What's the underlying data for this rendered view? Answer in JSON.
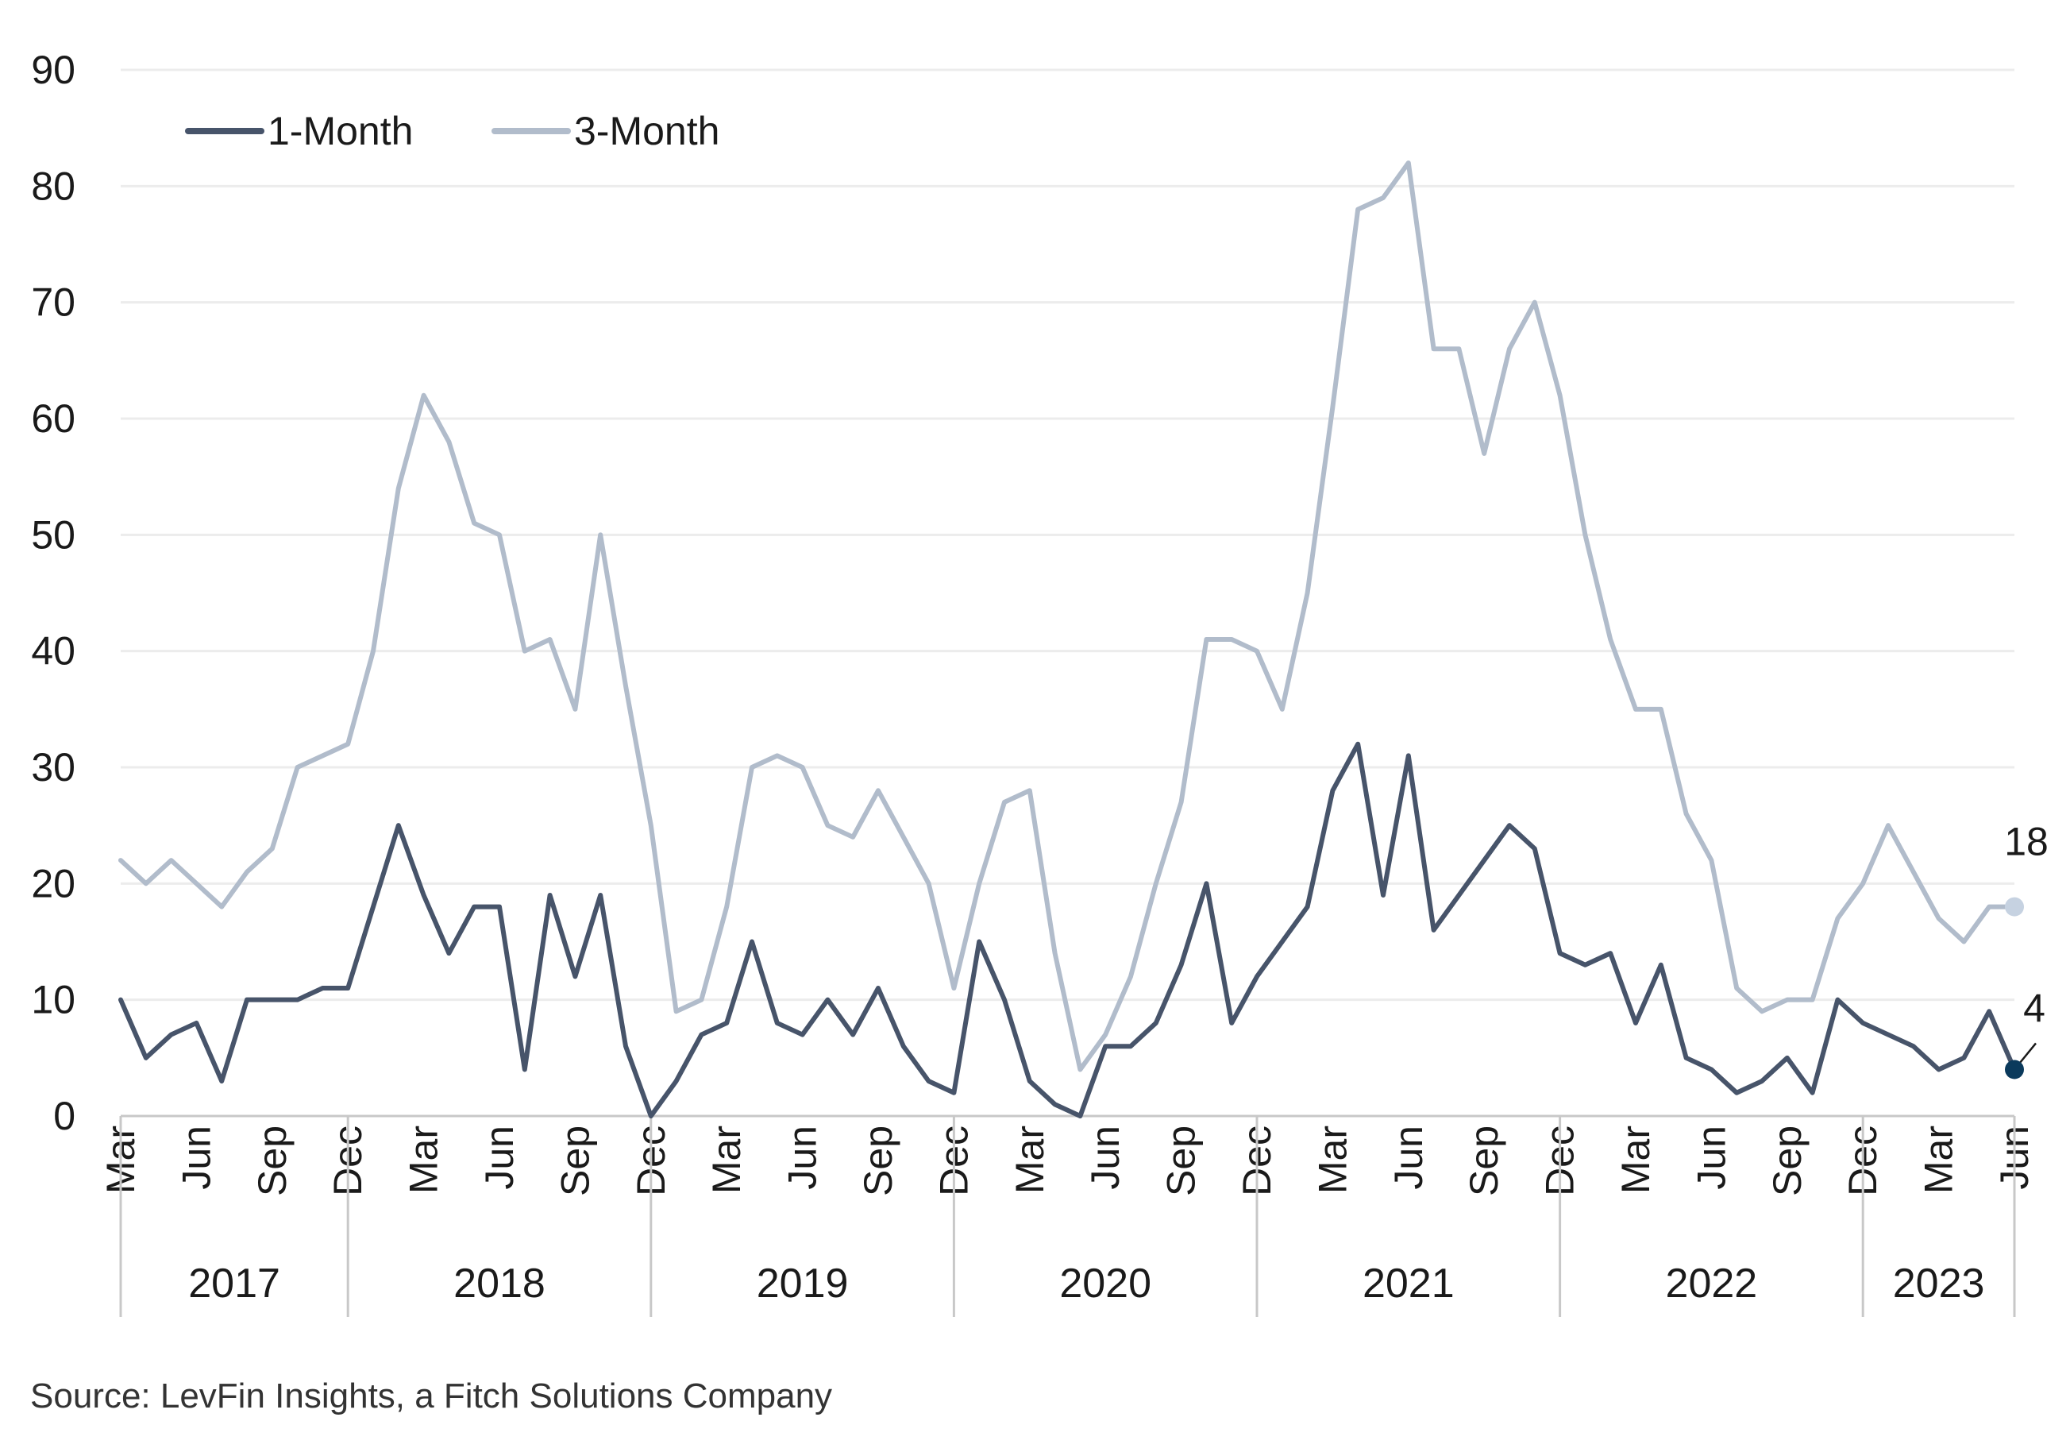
{
  "source": "Source: LevFin Insights, a Fitch Solutions Company",
  "colors": {
    "one_month": "#47546a",
    "three_month": "#b1bccb",
    "grid": "#ececec",
    "axis": "#c8c8c8",
    "end_dot_one": "#0b3a5c",
    "end_dot_three": "#c6d2e1"
  },
  "chart_data": {
    "type": "line",
    "title": "",
    "xlabel": "",
    "ylabel": "",
    "ylim": [
      0,
      90
    ],
    "yticks": [
      0,
      10,
      20,
      30,
      40,
      50,
      60,
      70,
      80,
      90
    ],
    "grid": "horizontal",
    "legend": {
      "position": "top-left",
      "entries": [
        "1-Month",
        "3-Month"
      ]
    },
    "x_tick_labels": [
      "Mar",
      "Jun",
      "Sep",
      "Dec",
      "Mar",
      "Jun",
      "Sep",
      "Dec",
      "Mar",
      "Jun",
      "Sep",
      "Dec",
      "Mar",
      "Jun",
      "Sep",
      "Dec",
      "Mar",
      "Jun",
      "Sep",
      "Dec",
      "Mar",
      "Jun",
      "Sep",
      "Dec",
      "Mar",
      "Jun"
    ],
    "years": [
      "2017",
      "2018",
      "2019",
      "2020",
      "2021",
      "2022",
      "2023"
    ],
    "x": [
      "2017-03",
      "2017-04",
      "2017-05",
      "2017-06",
      "2017-07",
      "2017-08",
      "2017-09",
      "2017-10",
      "2017-11",
      "2017-12",
      "2018-01",
      "2018-02",
      "2018-03",
      "2018-04",
      "2018-05",
      "2018-06",
      "2018-07",
      "2018-08",
      "2018-09",
      "2018-10",
      "2018-11",
      "2018-12",
      "2019-01",
      "2019-02",
      "2019-03",
      "2019-04",
      "2019-05",
      "2019-06",
      "2019-07",
      "2019-08",
      "2019-09",
      "2019-10",
      "2019-11",
      "2019-12",
      "2020-01",
      "2020-02",
      "2020-03",
      "2020-04",
      "2020-05",
      "2020-06",
      "2020-07",
      "2020-08",
      "2020-09",
      "2020-10",
      "2020-11",
      "2020-12",
      "2021-01",
      "2021-02",
      "2021-03",
      "2021-04",
      "2021-05",
      "2021-06",
      "2021-07",
      "2021-08",
      "2021-09",
      "2021-10",
      "2021-11",
      "2021-12",
      "2022-01",
      "2022-02",
      "2022-03",
      "2022-04",
      "2022-05",
      "2022-06",
      "2022-07",
      "2022-08",
      "2022-09",
      "2022-10",
      "2022-11",
      "2022-12",
      "2023-01",
      "2023-02",
      "2023-03",
      "2023-04",
      "2023-05",
      "2023-06"
    ],
    "series": [
      {
        "name": "1-Month",
        "values": [
          10,
          5,
          7,
          8,
          3,
          10,
          10,
          10,
          11,
          11,
          18,
          25,
          19,
          14,
          18,
          18,
          4,
          19,
          12,
          19,
          6,
          0,
          3,
          7,
          8,
          15,
          8,
          7,
          10,
          7,
          11,
          6,
          3,
          2,
          15,
          10,
          3,
          1,
          0,
          6,
          6,
          8,
          13,
          20,
          8,
          12,
          15,
          18,
          28,
          32,
          19,
          31,
          16,
          19,
          22,
          25,
          23,
          14,
          13,
          14,
          8,
          13,
          5,
          4,
          2,
          3,
          5,
          2,
          10,
          8,
          7,
          6,
          4,
          5,
          9,
          4
        ]
      },
      {
        "name": "3-Month",
        "values": [
          22,
          20,
          22,
          20,
          18,
          21,
          23,
          30,
          31,
          32,
          40,
          54,
          62,
          58,
          51,
          50,
          40,
          41,
          35,
          50,
          37,
          25,
          9,
          10,
          18,
          30,
          31,
          30,
          25,
          24,
          28,
          24,
          20,
          11,
          20,
          27,
          28,
          14,
          4,
          7,
          12,
          20,
          27,
          41,
          41,
          40,
          35,
          45,
          61,
          78,
          79,
          82,
          66,
          66,
          57,
          66,
          70,
          62,
          50,
          41,
          35,
          35,
          26,
          22,
          11,
          9,
          10,
          10,
          17,
          20,
          25,
          21,
          17,
          15,
          18,
          18
        ]
      }
    ],
    "annotations": [
      {
        "series": "3-Month",
        "label": "18"
      },
      {
        "series": "1-Month",
        "label": "4"
      }
    ]
  }
}
